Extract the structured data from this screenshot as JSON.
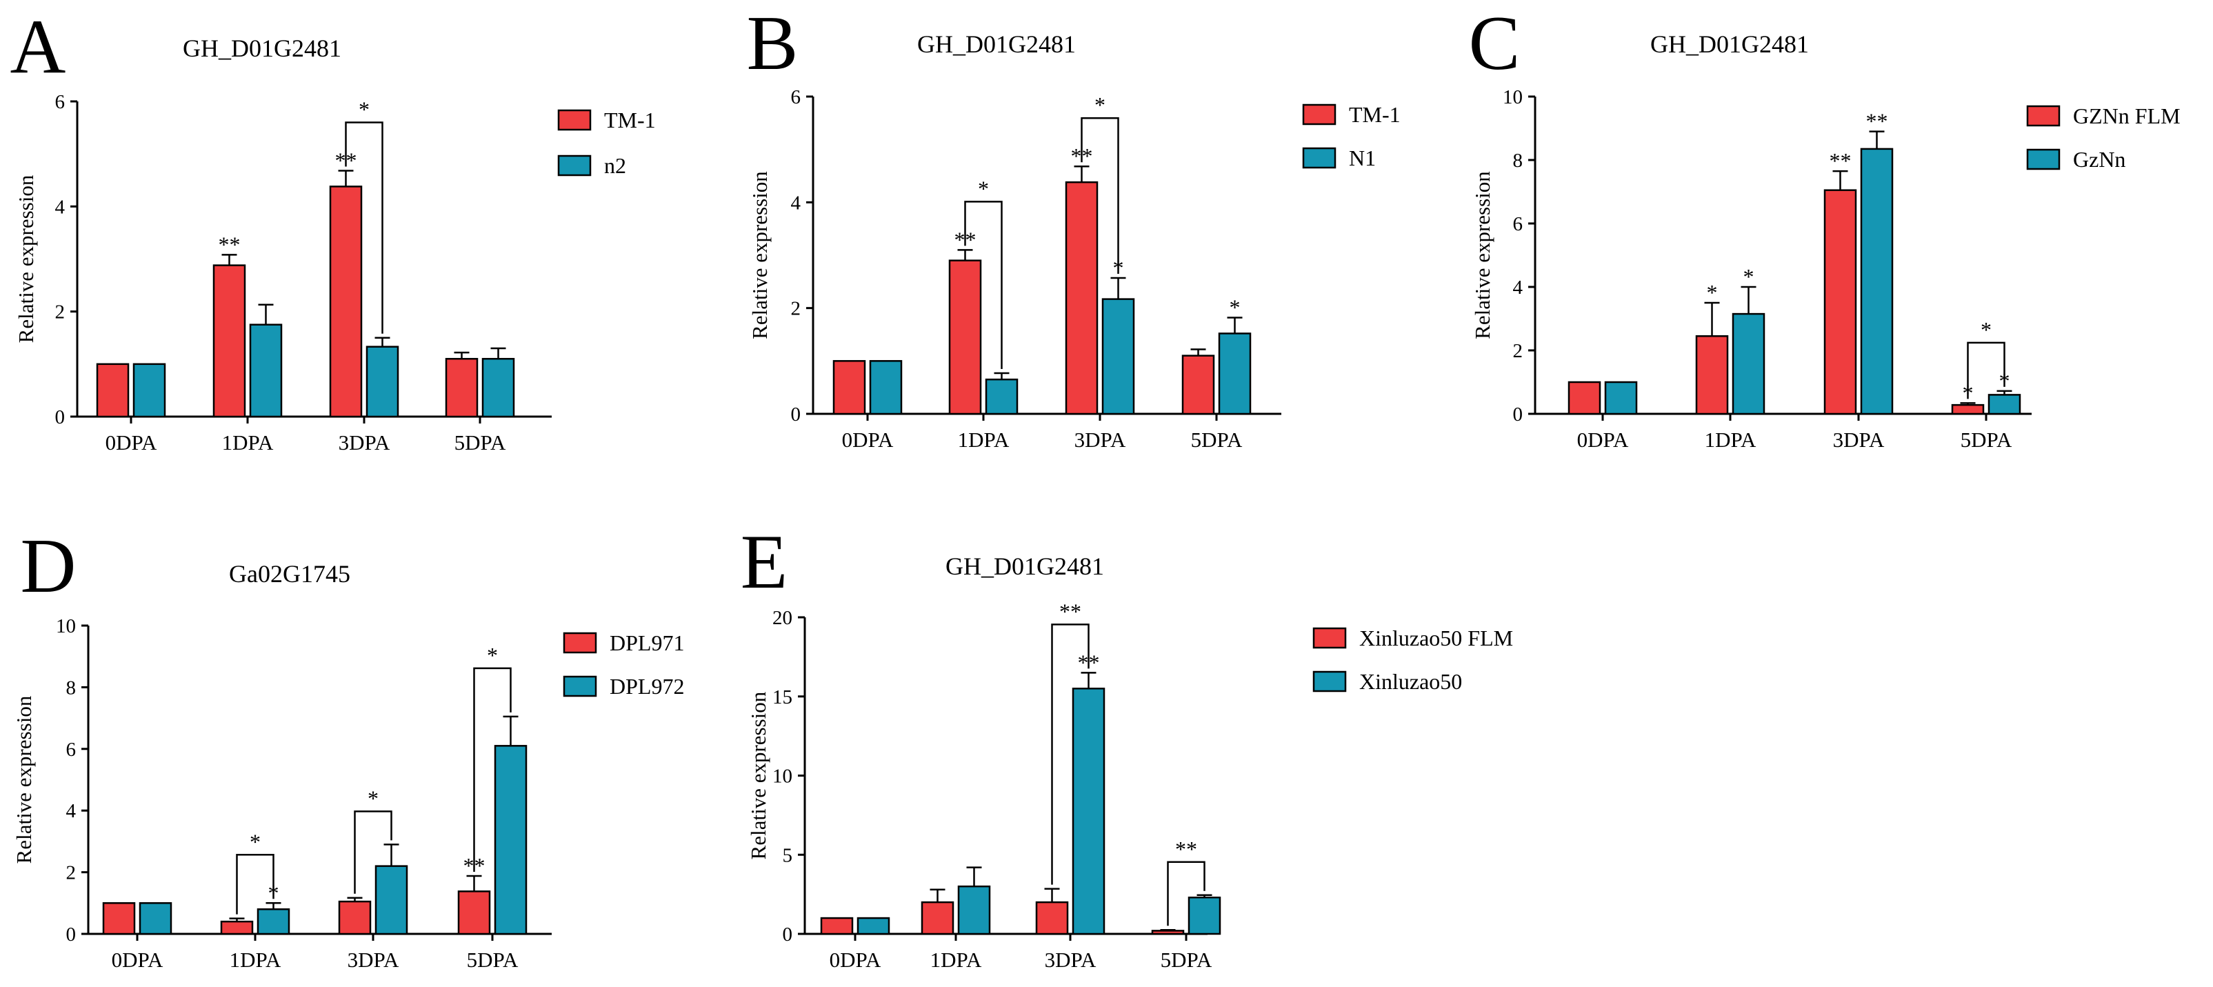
{
  "colors": {
    "series1": "#ef3d3f",
    "series2": "#1596b3",
    "axis": "#000000"
  },
  "chart_data": [
    {
      "panel": "A",
      "type": "bar",
      "title": "GH_D01G2481",
      "xlabel": "",
      "ylabel": "Relative expression",
      "ylim": [
        0,
        6
      ],
      "yticks": [
        0,
        2,
        4,
        6
      ],
      "categories": [
        "0DPA",
        "1DPA",
        "3DPA",
        "5DPA"
      ],
      "series": [
        {
          "name": "TM-1",
          "values": [
            1.0,
            2.88,
            4.38,
            1.1
          ],
          "errors": [
            0,
            0.2,
            0.3,
            0.12
          ]
        },
        {
          "name": "n2",
          "values": [
            1.0,
            1.75,
            1.33,
            1.1
          ],
          "errors": [
            0,
            0.38,
            0.17,
            0.2
          ]
        }
      ],
      "annotations": [
        {
          "label": "**",
          "series": 0,
          "category": 1
        },
        {
          "label": "**",
          "series": 0,
          "category": 2
        }
      ],
      "brackets": [
        {
          "label": "*",
          "category": 2
        }
      ]
    },
    {
      "panel": "B",
      "type": "bar",
      "title": "GH_D01G2481",
      "xlabel": "",
      "ylabel": "Relative expression",
      "ylim": [
        0,
        6
      ],
      "yticks": [
        0,
        2,
        4,
        6
      ],
      "categories": [
        "0DPA",
        "1DPA",
        "3DPA",
        "5DPA"
      ],
      "series": [
        {
          "name": "TM-1",
          "values": [
            1.0,
            2.9,
            4.38,
            1.1
          ],
          "errors": [
            0,
            0.2,
            0.3,
            0.12
          ]
        },
        {
          "name": "N1",
          "values": [
            1.0,
            0.65,
            2.17,
            1.52
          ],
          "errors": [
            0,
            0.12,
            0.4,
            0.3
          ]
        }
      ],
      "annotations": [
        {
          "label": "**",
          "series": 0,
          "category": 1
        },
        {
          "label": "**",
          "series": 0,
          "category": 2
        },
        {
          "label": "*",
          "series": 1,
          "category": 2
        },
        {
          "label": "*",
          "series": 1,
          "category": 3
        }
      ],
      "brackets": [
        {
          "label": "*",
          "category": 1
        },
        {
          "label": "*",
          "category": 2
        }
      ]
    },
    {
      "panel": "C",
      "type": "bar",
      "title": "GH_D01G2481",
      "xlabel": "",
      "ylabel": "Relative expression",
      "ylim": [
        0,
        10
      ],
      "yticks": [
        0,
        2,
        4,
        6,
        8,
        10
      ],
      "categories": [
        "0DPA",
        "1DPA",
        "3DPA",
        "5DPA"
      ],
      "series": [
        {
          "name": "GZNn FLM",
          "values": [
            1.0,
            2.45,
            7.05,
            0.28
          ],
          "errors": [
            0,
            1.05,
            0.6,
            0.06
          ]
        },
        {
          "name": "GzNn",
          "values": [
            1.0,
            3.15,
            8.35,
            0.6
          ],
          "errors": [
            0,
            0.85,
            0.55,
            0.12
          ]
        }
      ],
      "annotations": [
        {
          "label": "*",
          "series": 0,
          "category": 1
        },
        {
          "label": "*",
          "series": 1,
          "category": 1
        },
        {
          "label": "**",
          "series": 0,
          "category": 2
        },
        {
          "label": "**",
          "series": 1,
          "category": 2
        },
        {
          "label": "*",
          "series": 0,
          "category": 3
        },
        {
          "label": "*",
          "series": 1,
          "category": 3
        }
      ],
      "brackets": [
        {
          "label": "*",
          "category": 3
        }
      ]
    },
    {
      "panel": "D",
      "type": "bar",
      "title": "Ga02G1745",
      "xlabel": "",
      "ylabel": "Relative expression",
      "ylim": [
        0,
        10
      ],
      "yticks": [
        0,
        2,
        4,
        6,
        8,
        10
      ],
      "categories": [
        "0DPA",
        "1DPA",
        "3DPA",
        "5DPA"
      ],
      "series": [
        {
          "name": "DPL971",
          "values": [
            1.0,
            0.4,
            1.05,
            1.38
          ],
          "errors": [
            0,
            0.1,
            0.12,
            0.5
          ]
        },
        {
          "name": "DPL972",
          "values": [
            1.0,
            0.8,
            2.2,
            6.1
          ],
          "errors": [
            0,
            0.2,
            0.7,
            0.95
          ]
        }
      ],
      "annotations": [
        {
          "label": "*",
          "series": 1,
          "category": 1
        },
        {
          "label": "**",
          "series": 0,
          "category": 3
        }
      ],
      "brackets": [
        {
          "label": "*",
          "category": 1
        },
        {
          "label": "*",
          "category": 2
        },
        {
          "label": "*",
          "category": 3
        }
      ]
    },
    {
      "panel": "E",
      "type": "bar",
      "title": "GH_D01G2481",
      "xlabel": "",
      "ylabel": "Relative expression",
      "ylim": [
        0,
        20
      ],
      "yticks": [
        0,
        5,
        10,
        15,
        20
      ],
      "categories": [
        "0DPA",
        "1DPA",
        "3DPA",
        "5DPA"
      ],
      "series": [
        {
          "name": "Xinluzao50 FLM",
          "values": [
            1.0,
            2.0,
            2.0,
            0.2
          ],
          "errors": [
            0,
            0.8,
            0.85,
            0.05
          ]
        },
        {
          "name": "Xinluzao50",
          "values": [
            1.0,
            3.0,
            15.5,
            2.3
          ],
          "errors": [
            0,
            1.2,
            1.0,
            0.15
          ]
        }
      ],
      "annotations": [
        {
          "label": "**",
          "series": 1,
          "category": 2
        }
      ],
      "brackets": [
        {
          "label": "**",
          "category": 2
        },
        {
          "label": "**",
          "category": 3
        }
      ]
    }
  ]
}
